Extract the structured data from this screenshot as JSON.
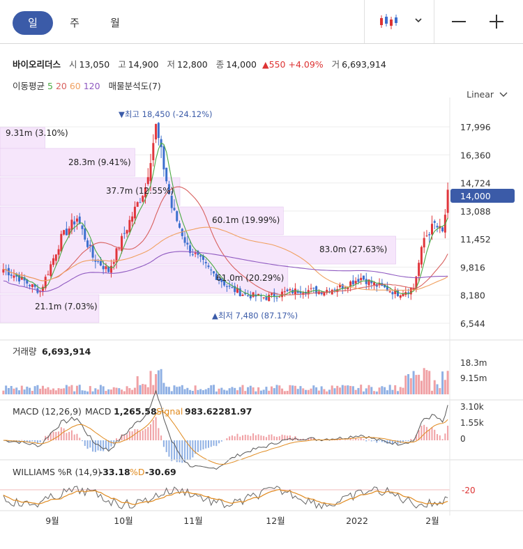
{
  "tabs": [
    {
      "label": "일",
      "active": true
    },
    {
      "label": "주",
      "active": false
    },
    {
      "label": "월",
      "active": false
    }
  ],
  "toolbar": {
    "chart_type_icon": "candlestick-icon",
    "dropdown_icon": "chevron-down-icon",
    "zoom_out": "—",
    "zoom_in": "+"
  },
  "quote": {
    "name": "바이오리더스",
    "open_label": "시",
    "open": "13,050",
    "high_label": "고",
    "high": "14,900",
    "low_label": "저",
    "low": "12,800",
    "close_label": "종",
    "close": "14,000",
    "change": "▲550",
    "change_pct": "+4.09%",
    "volume_label": "거",
    "volume": "6,693,914"
  },
  "ma": {
    "label": "이동평균",
    "p5": "5",
    "p20": "20",
    "p60": "60",
    "p120": "120",
    "profile_label": "매물분석도(7)"
  },
  "scale": {
    "label": "Linear"
  },
  "colors": {
    "up": "#e0353b",
    "down": "#3c6fce",
    "ma5": "#49a942",
    "ma20": "#d8605e",
    "ma60": "#f0a060",
    "ma120": "#8e58c0",
    "profile": "#f6e6fb"
  },
  "chart_data": {
    "type": "candlestick",
    "price_ticks": [
      "17,996",
      "16,360",
      "14,724",
      "13,088",
      "11,452",
      "9,816",
      "8,180",
      "6,544"
    ],
    "current_price": "14,000",
    "high_annotation": "▼최고 18,450 (-24.12%)",
    "low_annotation": "▲최저 7,480 (87.17%)",
    "volume_profile": [
      {
        "label": "9.31m (3.10%)"
      },
      {
        "label": "28.3m (9.41%)"
      },
      {
        "label": "37.7m (12.55%)"
      },
      {
        "label": "60.1m (19.99%)"
      },
      {
        "label": "83.0m (27.63%)"
      },
      {
        "label": "61.0m (20.29%)"
      },
      {
        "label": "21.1m (7.03%)"
      }
    ],
    "x_labels": [
      "9월",
      "10월",
      "11월",
      "12월",
      "2022",
      "2월"
    ],
    "volume": {
      "label": "거래량",
      "value": "6,693,914",
      "ticks": [
        "18.3m",
        "9.15m"
      ]
    },
    "macd": {
      "label": "MACD (12,26,9)",
      "macd_label": "MACD",
      "macd_value": "1,265.58",
      "signal_label": "Signal",
      "signal_value": "983.62281.97",
      "ticks": [
        "3.10k",
        "1.55k",
        "0"
      ]
    },
    "williams": {
      "label": "WILLIAMS %R (14,9)",
      "value": "-33.18",
      "d_label": "%D",
      "d_value": "-30.69",
      "ticks": [
        "-20"
      ]
    }
  }
}
